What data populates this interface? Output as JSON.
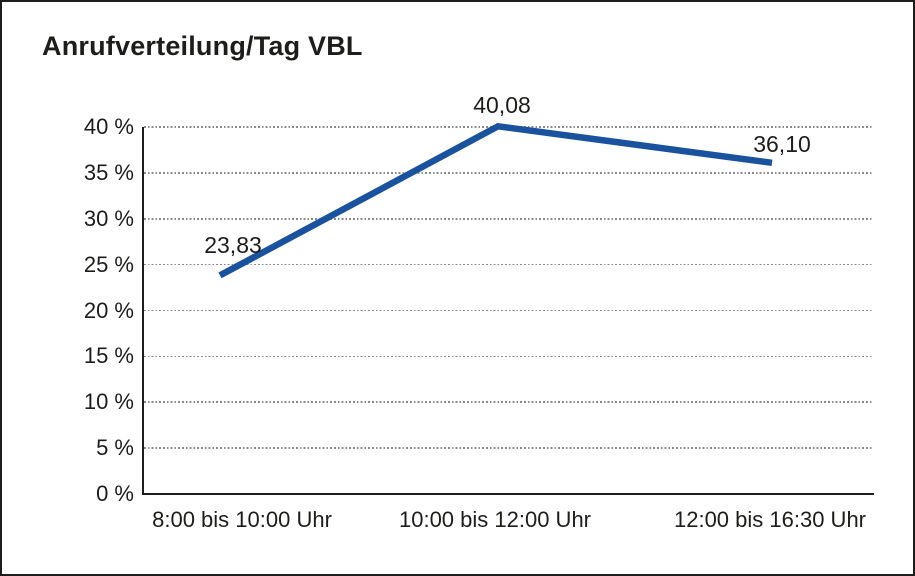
{
  "chart_data": {
    "type": "line",
    "title": "Anrufverteilung/Tag VBL",
    "categories": [
      "8:00 bis 10:00 Uhr",
      "10:00 bis 12:00 Uhr",
      "12:00 bis 16:30 Uhr"
    ],
    "values": [
      23.83,
      40.08,
      36.1
    ],
    "point_labels": [
      "23,83",
      "40,08",
      "36,10"
    ],
    "ylim": [
      0,
      40
    ],
    "ytick_step": 5,
    "ytick_labels": [
      "0 %",
      "5 %",
      "10 %",
      "15 %",
      "20 %",
      "25 %",
      "30 %",
      "35 %",
      "40 %"
    ],
    "xlabel": "",
    "ylabel": "",
    "legend": "none",
    "grid": "horizontal-dotted",
    "colors": {
      "series_line": "#1A529E",
      "text": "#1D1D1B",
      "grid_line": "#8A8A8A",
      "axis_line": "#1D1D1B",
      "frame_border": "#1D1D1B",
      "background": "#FFFFFF"
    }
  }
}
